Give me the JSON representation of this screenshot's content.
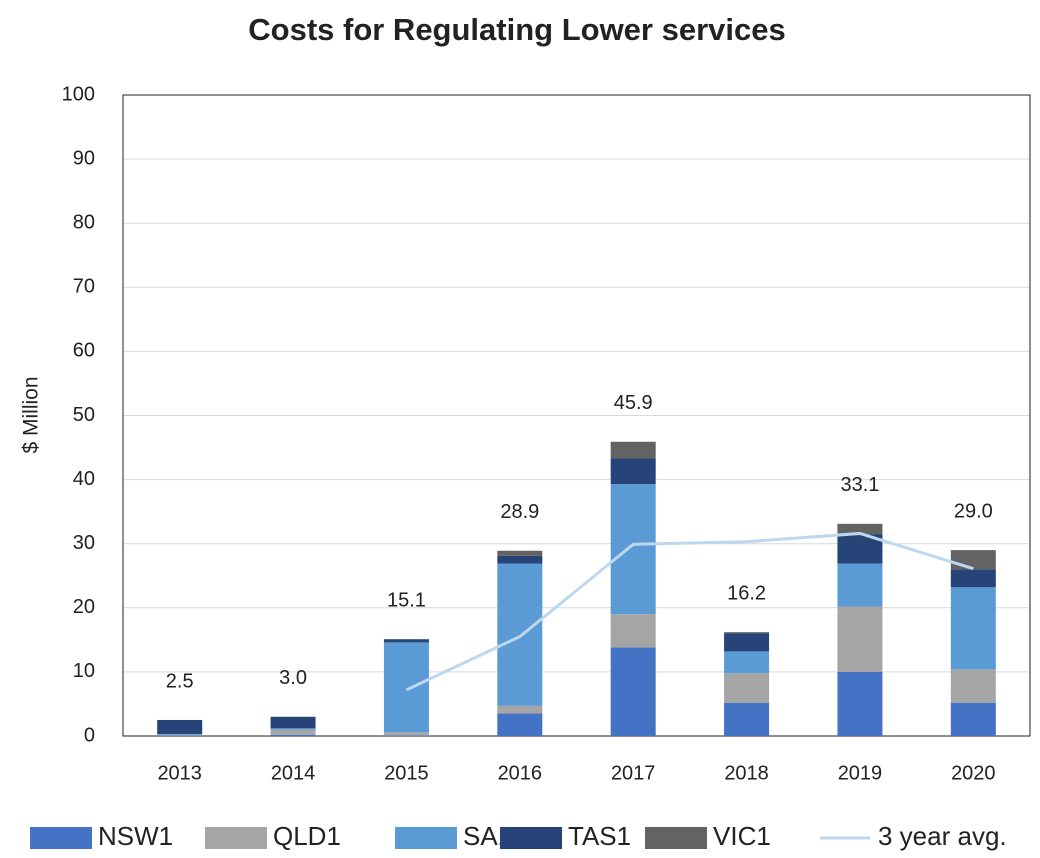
{
  "chart_data": {
    "type": "bar",
    "stacked": true,
    "title": "Costs for Regulating Lower services",
    "y_label": "$ Million",
    "categories": [
      "2013",
      "2014",
      "2015",
      "2016",
      "2017",
      "2018",
      "2019",
      "2020"
    ],
    "series": [
      {
        "name": "NSW1",
        "color": "#4472c4",
        "values": [
          0.1,
          0.2,
          0.1,
          3.5,
          13.8,
          5.2,
          10.0,
          5.2
        ]
      },
      {
        "name": "QLD1",
        "color": "#a5a5a5",
        "values": [
          0.1,
          0.8,
          0.5,
          1.2,
          5.2,
          4.6,
          10.2,
          5.2
        ]
      },
      {
        "name": "SA1",
        "color": "#5b9bd5",
        "values": [
          0.1,
          0.2,
          14.0,
          22.2,
          20.3,
          3.4,
          6.7,
          12.8
        ]
      },
      {
        "name": "TAS1",
        "color": "#264478",
        "values": [
          2.2,
          1.8,
          0.5,
          1.2,
          4.0,
          2.8,
          4.6,
          2.8
        ]
      },
      {
        "name": "VIC1",
        "color": "#636363",
        "values": [
          0.0,
          0.0,
          0.0,
          0.8,
          2.6,
          0.2,
          1.6,
          3.0
        ]
      },
      {
        "name": "3 year avg.",
        "color": "#bdd7ee",
        "type": "line",
        "values": [
          null,
          null,
          7.2,
          15.5,
          29.9,
          30.3,
          31.6,
          26.1
        ]
      }
    ],
    "totals": {
      "values": [
        2.5,
        3.0,
        15.1,
        28.9,
        45.9,
        16.2,
        33.1,
        29.0
      ],
      "value_labels": [
        "2.5",
        "3.0",
        "15.1",
        "28.9",
        "45.9",
        "16.2",
        "33.1",
        "29.0"
      ]
    },
    "ylim": [
      0,
      100
    ],
    "yticks": [
      0,
      10,
      20,
      30,
      40,
      50,
      60,
      70,
      80,
      90,
      100
    ],
    "grid": true,
    "legend": "bottom"
  }
}
